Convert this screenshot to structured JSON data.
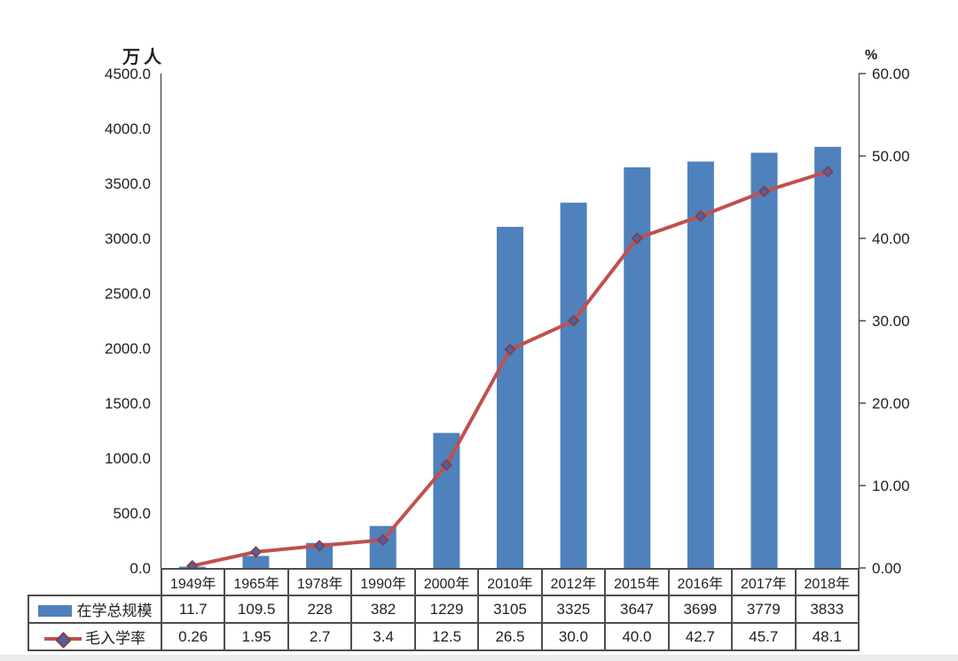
{
  "chart_data": {
    "type": "bar-line-combo",
    "title": "",
    "categories": [
      "1949年",
      "1965年",
      "1978年",
      "1990年",
      "2000年",
      "2010年",
      "2012年",
      "2015年",
      "2016年",
      "2017年",
      "2018年"
    ],
    "series": [
      {
        "name": "在学总规模",
        "chart_type": "bar",
        "axis": "left",
        "values": [
          11.7,
          109.5,
          228,
          382,
          1229,
          3105,
          3325,
          3647,
          3699,
          3779,
          3833
        ],
        "labels": [
          "11.7",
          "109.5",
          "228",
          "382",
          "1229",
          "3105",
          "3325",
          "3647",
          "3699",
          "3779",
          "3833"
        ],
        "color": "#4f81bd"
      },
      {
        "name": "毛入学率",
        "chart_type": "line",
        "axis": "right",
        "values": [
          0.26,
          1.95,
          2.7,
          3.4,
          12.5,
          26.5,
          30.0,
          40.0,
          42.7,
          45.7,
          48.1
        ],
        "labels": [
          "0.26",
          "1.95",
          "2.7",
          "3.4",
          "12.5",
          "26.5",
          "30.0",
          "40.0",
          "42.7",
          "45.7",
          "48.1"
        ],
        "color": "#c0504d",
        "marker": "diamond",
        "marker_fill": "#4a62a8",
        "marker_border": "#953735"
      }
    ],
    "left_axis": {
      "unit": "万人",
      "min": 0,
      "max": 4500,
      "step": 500,
      "tick_labels": [
        "0.0",
        "500.0",
        "1000.0",
        "1500.0",
        "2000.0",
        "2500.0",
        "3000.0",
        "3500.0",
        "4000.0",
        "4500.0"
      ]
    },
    "right_axis": {
      "unit": "%",
      "min": 0,
      "max": 60,
      "step": 10,
      "tick_labels": [
        "0.00",
        "10.00",
        "20.00",
        "30.00",
        "40.00",
        "50.00",
        "60.00"
      ]
    },
    "grid": false,
    "legend_position": "table-left",
    "data_table": true,
    "axis_color": "#595959",
    "table_border_color": "#4d4d4d",
    "text_color": "#1f1f1f"
  }
}
